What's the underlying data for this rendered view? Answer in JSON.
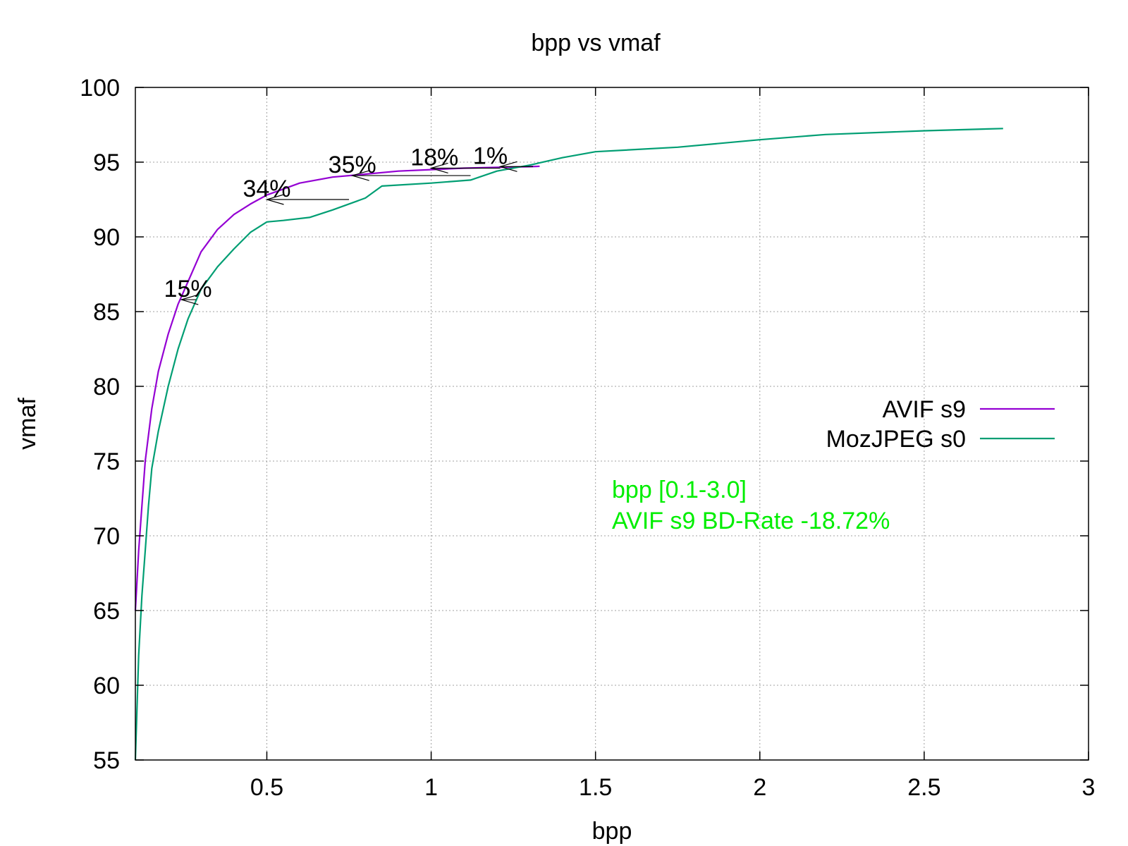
{
  "chart_data": {
    "type": "line",
    "title": "bpp vs vmaf",
    "xlabel": "bpp",
    "ylabel": "vmaf",
    "xlim": [
      0.1,
      3
    ],
    "ylim": [
      55,
      100
    ],
    "x_ticks": [
      {
        "value": 0.5,
        "label": "0.5"
      },
      {
        "value": 1,
        "label": "1"
      },
      {
        "value": 1.5,
        "label": "1.5"
      },
      {
        "value": 2,
        "label": "2"
      },
      {
        "value": 2.5,
        "label": "2.5"
      },
      {
        "value": 3,
        "label": "3"
      }
    ],
    "y_ticks": [
      {
        "value": 55,
        "label": "55"
      },
      {
        "value": 60,
        "label": "60"
      },
      {
        "value": 65,
        "label": "65"
      },
      {
        "value": 70,
        "label": "70"
      },
      {
        "value": 75,
        "label": "75"
      },
      {
        "value": 80,
        "label": "80"
      },
      {
        "value": 85,
        "label": "85"
      },
      {
        "value": 90,
        "label": "90"
      },
      {
        "value": 95,
        "label": "95"
      },
      {
        "value": 100,
        "label": "100"
      }
    ],
    "grid": true,
    "legend_position": "right",
    "series": [
      {
        "name": "AVIF s9",
        "color": "#9400d3",
        "points": [
          [
            0.1,
            65
          ],
          [
            0.11,
            69
          ],
          [
            0.12,
            72
          ],
          [
            0.13,
            75
          ],
          [
            0.15,
            78.5
          ],
          [
            0.17,
            81
          ],
          [
            0.2,
            83.5
          ],
          [
            0.23,
            85.5
          ],
          [
            0.27,
            87.5
          ],
          [
            0.3,
            89
          ],
          [
            0.35,
            90.5
          ],
          [
            0.4,
            91.5
          ],
          [
            0.45,
            92.2
          ],
          [
            0.5,
            92.8
          ],
          [
            0.55,
            93.2
          ],
          [
            0.6,
            93.6
          ],
          [
            0.7,
            94
          ],
          [
            0.8,
            94.2
          ],
          [
            0.9,
            94.4
          ],
          [
            1,
            94.5
          ],
          [
            1.1,
            94.6
          ],
          [
            1.2,
            94.65
          ],
          [
            1.3,
            94.7
          ],
          [
            1.33,
            94.72
          ]
        ]
      },
      {
        "name": "MozJPEG s0",
        "color": "#009e73",
        "points": [
          [
            0.1,
            55
          ],
          [
            0.11,
            62
          ],
          [
            0.12,
            66
          ],
          [
            0.13,
            69
          ],
          [
            0.14,
            72
          ],
          [
            0.15,
            74.5
          ],
          [
            0.17,
            77
          ],
          [
            0.2,
            80
          ],
          [
            0.23,
            82.5
          ],
          [
            0.26,
            84.5
          ],
          [
            0.3,
            86.5
          ],
          [
            0.35,
            88
          ],
          [
            0.4,
            89.2
          ],
          [
            0.45,
            90.3
          ],
          [
            0.5,
            91
          ],
          [
            0.55,
            91.1
          ],
          [
            0.63,
            91.3
          ],
          [
            0.7,
            91.8
          ],
          [
            0.8,
            92.6
          ],
          [
            0.85,
            93.4
          ],
          [
            1,
            93.6
          ],
          [
            1.12,
            93.8
          ],
          [
            1.2,
            94.4
          ],
          [
            1.3,
            94.8
          ],
          [
            1.4,
            95.3
          ],
          [
            1.5,
            95.7
          ],
          [
            1.75,
            96
          ],
          [
            2,
            96.5
          ],
          [
            2.2,
            96.85
          ],
          [
            2.5,
            97.1
          ],
          [
            2.74,
            97.25
          ]
        ]
      }
    ],
    "annotations": [
      {
        "text": "15%",
        "x": 0.26,
        "y": 85.8
      },
      {
        "text": "34%",
        "x": 0.5,
        "y": 92.5
      },
      {
        "text": "35%",
        "x": 0.76,
        "y": 94.1
      },
      {
        "text": "18%",
        "x": 1.01,
        "y": 94.6
      },
      {
        "text": "1%",
        "x": 1.18,
        "y": 94.7
      }
    ],
    "arrows": [
      {
        "x_from": 0.285,
        "x_to": 0.24,
        "y": 85.8
      },
      {
        "x_from": 0.75,
        "x_to": 0.5,
        "y": 92.5
      },
      {
        "x_from": 1.12,
        "x_to": 0.76,
        "y": 94.1
      },
      {
        "x_from": 1.21,
        "x_to": 1.0,
        "y": 94.6
      },
      {
        "x_from": 1.31,
        "x_to": 1.21,
        "y": 94.7
      }
    ],
    "info_text": {
      "color": "#00ee00",
      "lines": [
        "bpp [0.1-3.0]",
        "AVIF s9 BD-Rate -18.72%"
      ]
    }
  }
}
